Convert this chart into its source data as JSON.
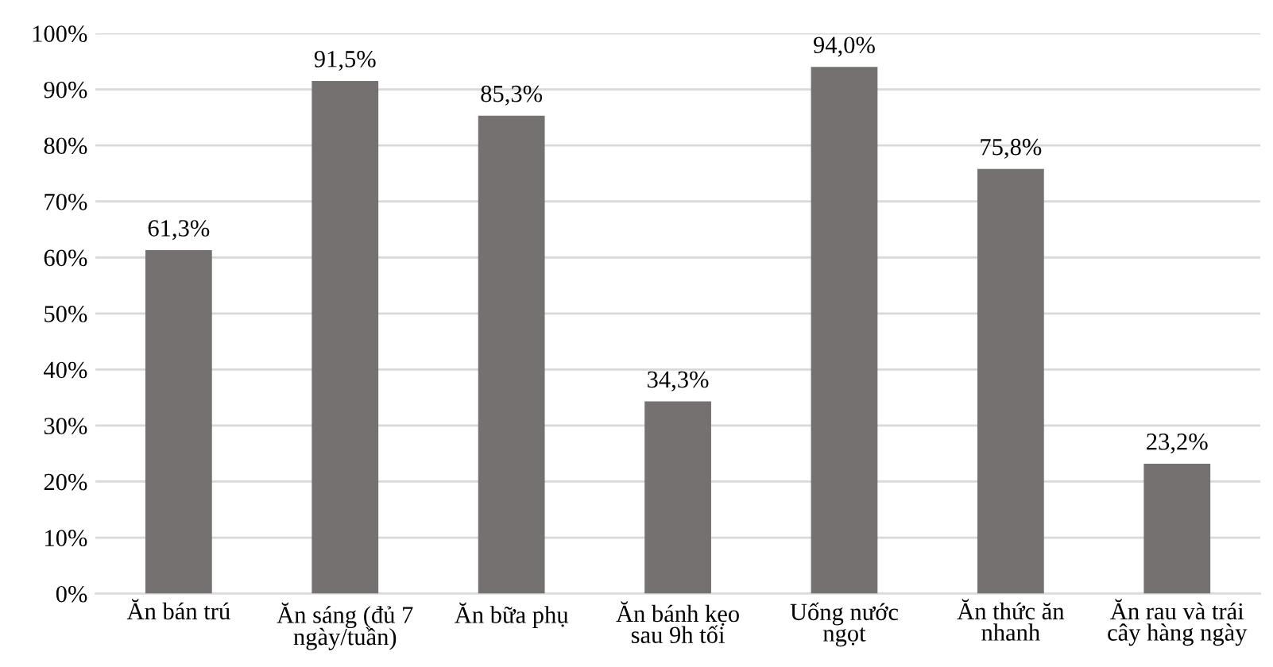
{
  "chart_data": {
    "type": "bar",
    "categories": [
      "Ăn bán trú",
      "Ăn sáng (đủ 7\nngày/tuần)",
      "Ăn bữa phụ",
      "Ăn bánh kẹo\nsau 9h tối",
      "Uống nước\nngọt",
      "Ăn thức ăn\nnhanh",
      "Ăn rau và trái\ncây hàng ngày"
    ],
    "values": [
      61.3,
      91.5,
      85.3,
      34.3,
      94.0,
      75.8,
      23.2
    ],
    "value_labels": [
      "61,3%",
      "91,5%",
      "85,3%",
      "34,3%",
      "94,0%",
      "75,8%",
      "23,2%"
    ],
    "color": "#767171",
    "ylim": [
      0,
      100
    ],
    "yticks": [
      {
        "value": 0,
        "label": "0%"
      },
      {
        "value": 10,
        "label": "10%"
      },
      {
        "value": 20,
        "label": "20%"
      },
      {
        "value": 30,
        "label": "30%"
      },
      {
        "value": 40,
        "label": "40%"
      },
      {
        "value": 50,
        "label": "50%"
      },
      {
        "value": 60,
        "label": "60%"
      },
      {
        "value": 70,
        "label": "70%"
      },
      {
        "value": 80,
        "label": "80%"
      },
      {
        "value": 90,
        "label": "90%"
      },
      {
        "value": 100,
        "label": "100%"
      }
    ],
    "grid": "y"
  }
}
